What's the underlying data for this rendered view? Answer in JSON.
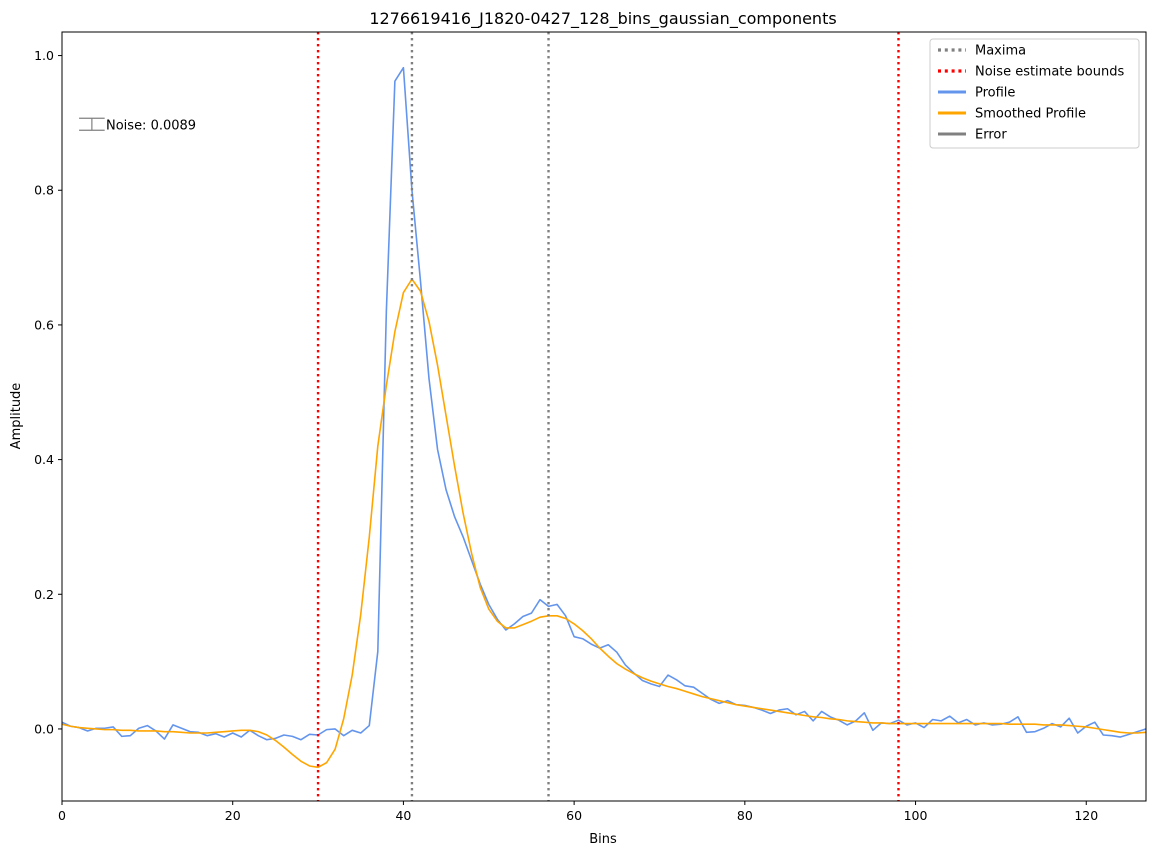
{
  "chart_data": {
    "type": "line",
    "title": "1276619416_J1820-0427_128_bins_gaussian_components",
    "xlabel": "Bins",
    "ylabel": "Amplitude",
    "xlim": [
      0,
      127
    ],
    "ylim": [
      -0.107,
      1.035
    ],
    "xticks": [
      0,
      20,
      40,
      60,
      80,
      100,
      120
    ],
    "yticks": [
      0.0,
      0.2,
      0.4,
      0.6,
      0.8,
      1.0
    ],
    "grid": false,
    "legend_position": "top-right",
    "legend": [
      {
        "label": "Maxima",
        "style": "dotted",
        "color": "#808080"
      },
      {
        "label": "Noise estimate bounds",
        "style": "dotted",
        "color": "#ff0000"
      },
      {
        "label": "Profile",
        "style": "solid",
        "color": "#6495ed"
      },
      {
        "label": "Smoothed Profile",
        "style": "solid",
        "color": "#ffa500"
      },
      {
        "label": "Error",
        "style": "solid",
        "color": "#808080"
      }
    ],
    "maxima_x": [
      41,
      57
    ],
    "noise_bounds_x": [
      30,
      98
    ],
    "noise_annotation": "Noise: 0.0089",
    "noise_errorbar": {
      "x": [
        2,
        5
      ],
      "y": 0.898,
      "yerr": 0.0089
    },
    "series": [
      {
        "name": "Profile",
        "color": "#6495ed",
        "x_start": 0,
        "values": [
          0.01,
          0.004,
          0.002,
          -0.003,
          0.001,
          0.001,
          0.003,
          -0.011,
          -0.01,
          0.001,
          0.005,
          -0.003,
          -0.015,
          0.006,
          0.001,
          -0.004,
          -0.005,
          -0.01,
          -0.007,
          -0.012,
          -0.006,
          -0.012,
          -0.002,
          -0.01,
          -0.016,
          -0.014,
          -0.009,
          -0.011,
          -0.016,
          -0.008,
          -0.009,
          -0.001,
          0.0,
          -0.01,
          -0.002,
          -0.006,
          0.005,
          0.115,
          0.62,
          0.962,
          0.982,
          0.8,
          0.665,
          0.52,
          0.415,
          0.355,
          0.315,
          0.285,
          0.25,
          0.215,
          0.185,
          0.163,
          0.147,
          0.156,
          0.167,
          0.172,
          0.192,
          0.182,
          0.185,
          0.168,
          0.137,
          0.134,
          0.126,
          0.12,
          0.125,
          0.114,
          0.095,
          0.083,
          0.072,
          0.067,
          0.063,
          0.08,
          0.073,
          0.064,
          0.062,
          0.053,
          0.044,
          0.038,
          0.042,
          0.036,
          0.035,
          0.032,
          0.028,
          0.023,
          0.028,
          0.03,
          0.021,
          0.026,
          0.012,
          0.026,
          0.018,
          0.013,
          0.006,
          0.012,
          0.024,
          -0.002,
          0.009,
          0.008,
          0.013,
          0.006,
          0.009,
          0.002,
          0.014,
          0.012,
          0.019,
          0.009,
          0.014,
          0.006,
          0.009,
          0.006,
          0.007,
          0.01,
          0.018,
          -0.005,
          -0.004,
          0.001,
          0.008,
          0.003,
          0.016,
          -0.006,
          0.004,
          0.01,
          -0.009,
          -0.01,
          -0.012,
          -0.008,
          -0.004,
          0.0
        ]
      },
      {
        "name": "Smoothed Profile",
        "color": "#ffa500",
        "x_start": 0,
        "values": [
          0.007,
          0.004,
          0.002,
          0.001,
          0.0,
          -0.001,
          -0.001,
          -0.002,
          -0.002,
          -0.003,
          -0.003,
          -0.003,
          -0.004,
          -0.004,
          -0.005,
          -0.006,
          -0.006,
          -0.006,
          -0.005,
          -0.004,
          -0.003,
          -0.002,
          -0.002,
          -0.004,
          -0.009,
          -0.017,
          -0.027,
          -0.038,
          -0.048,
          -0.055,
          -0.057,
          -0.05,
          -0.03,
          0.015,
          0.08,
          0.17,
          0.285,
          0.42,
          0.51,
          0.59,
          0.648,
          0.668,
          0.65,
          0.605,
          0.54,
          0.465,
          0.39,
          0.32,
          0.26,
          0.21,
          0.178,
          0.16,
          0.15,
          0.15,
          0.155,
          0.16,
          0.166,
          0.168,
          0.168,
          0.164,
          0.156,
          0.146,
          0.134,
          0.12,
          0.108,
          0.097,
          0.089,
          0.082,
          0.076,
          0.071,
          0.067,
          0.063,
          0.06,
          0.056,
          0.052,
          0.048,
          0.045,
          0.042,
          0.039,
          0.036,
          0.034,
          0.032,
          0.03,
          0.028,
          0.026,
          0.024,
          0.022,
          0.02,
          0.018,
          0.017,
          0.015,
          0.014,
          0.012,
          0.011,
          0.01,
          0.009,
          0.009,
          0.008,
          0.008,
          0.008,
          0.008,
          0.008,
          0.008,
          0.008,
          0.008,
          0.008,
          0.008,
          0.008,
          0.008,
          0.008,
          0.008,
          0.007,
          0.007,
          0.007,
          0.007,
          0.006,
          0.006,
          0.006,
          0.005,
          0.004,
          0.003,
          0.001,
          -0.001,
          -0.003,
          -0.005,
          -0.006,
          -0.006,
          -0.005
        ]
      }
    ]
  }
}
